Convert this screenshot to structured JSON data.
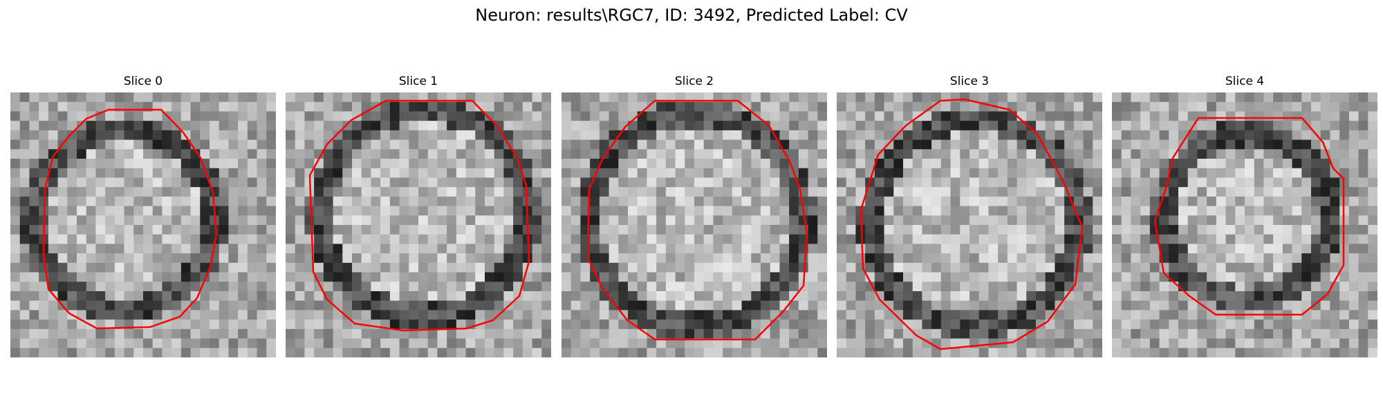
{
  "figure": {
    "title": "Neuron: results\\RGC7, ID: 3492, Predicted Label: CV",
    "contour_color": "#ff0000",
    "slices": [
      {
        "title": "Slice 0"
      },
      {
        "title": "Slice 1"
      },
      {
        "title": "Slice 2"
      },
      {
        "title": "Slice 3"
      },
      {
        "title": "Slice 4"
      }
    ]
  }
}
